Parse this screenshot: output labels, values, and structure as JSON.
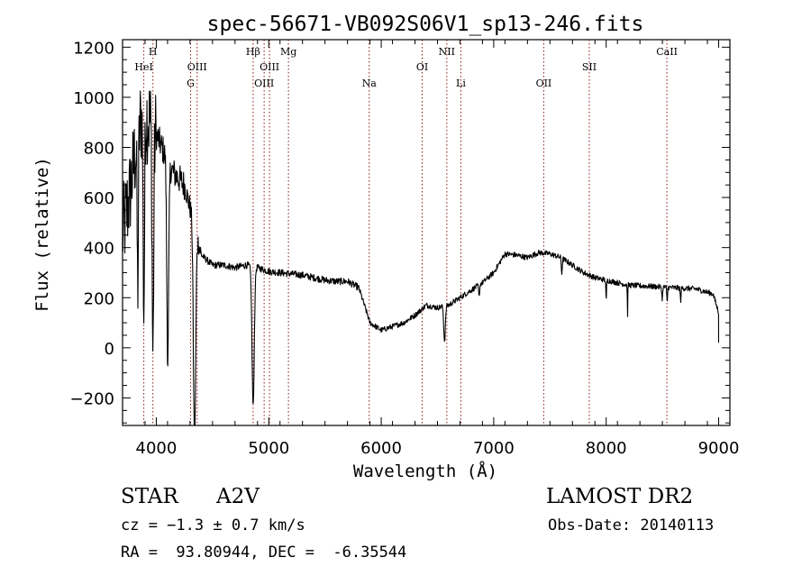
{
  "chart_data": {
    "type": "line",
    "title": "spec-56671-VB092S06V1_sp13-246.fits",
    "xlabel": "Wavelength (Å)",
    "ylabel": "Flux (relative)",
    "xlim": [
      3700,
      9100
    ],
    "ylim": [
      -310,
      1230
    ],
    "xticks": [
      4000,
      5000,
      6000,
      7000,
      8000,
      9000
    ],
    "yticks": [
      -200,
      0,
      200,
      400,
      600,
      800,
      1000,
      1200
    ],
    "xtick_labels": [
      "4000",
      "5000",
      "6000",
      "7000",
      "8000",
      "9000"
    ],
    "ytick_labels": [
      "−200",
      "0",
      "200",
      "400",
      "600",
      "800",
      "1000",
      "1200"
    ],
    "grid": false,
    "line_color": "#000000",
    "marker_color": "#8b1a1a",
    "lines": [
      {
        "label": "H",
        "wavelength": 3970,
        "row": 1
      },
      {
        "label": "HeI",
        "wavelength": 3889,
        "row": 2
      },
      {
        "label": "OIII",
        "wavelength": 4363,
        "row": 2
      },
      {
        "label": "G",
        "wavelength": 4305,
        "row": 3
      },
      {
        "label": "Hβ",
        "wavelength": 4861,
        "row": 1
      },
      {
        "label": "OIII",
        "wavelength": 4959,
        "row": 3
      },
      {
        "label": "OIII",
        "wavelength": 5007,
        "row": 2
      },
      {
        "label": "Mg",
        "wavelength": 5175,
        "row": 1
      },
      {
        "label": "Na",
        "wavelength": 5893,
        "row": 3
      },
      {
        "label": "OI",
        "wavelength": 6364,
        "row": 2
      },
      {
        "label": "NII",
        "wavelength": 6583,
        "row": 1
      },
      {
        "label": "Li",
        "wavelength": 6708,
        "row": 3
      },
      {
        "label": "OII",
        "wavelength": 7445,
        "row": 3
      },
      {
        "label": "SII",
        "wavelength": 7850,
        "row": 2
      },
      {
        "label": "CaII",
        "wavelength": 8540,
        "row": 1
      }
    ],
    "spectrum_anchors": {
      "x": [
        3700,
        3760,
        3820,
        3880,
        3950,
        4050,
        4150,
        4250,
        4300,
        4400,
        4500,
        4600,
        4700,
        4800,
        4900,
        5000,
        5100,
        5200,
        5300,
        5400,
        5500,
        5600,
        5700,
        5800,
        5900,
        6000,
        6100,
        6200,
        6300,
        6400,
        6500,
        6600,
        6700,
        6800,
        6900,
        7000,
        7100,
        7200,
        7300,
        7400,
        7500,
        7600,
        7700,
        7800,
        7900,
        8000,
        8200,
        8400,
        8600,
        8800,
        8950,
        9000
      ],
      "y": [
        450,
        600,
        800,
        950,
        900,
        800,
        700,
        650,
        560,
        370,
        330,
        330,
        320,
        330,
        320,
        305,
        300,
        295,
        290,
        280,
        270,
        265,
        265,
        240,
        100,
        70,
        85,
        100,
        130,
        170,
        160,
        170,
        200,
        230,
        260,
        300,
        375,
        370,
        360,
        380,
        375,
        360,
        330,
        300,
        280,
        270,
        250,
        245,
        240,
        235,
        215,
        140
      ]
    },
    "absorption_dips": [
      {
        "x": 3835,
        "depth": 600,
        "width": 8
      },
      {
        "x": 3889,
        "depth": 800,
        "width": 9
      },
      {
        "x": 3970,
        "depth": 900,
        "width": 10
      },
      {
        "x": 4102,
        "depth": 800,
        "width": 12
      },
      {
        "x": 4340,
        "depth": 900,
        "width": 14
      },
      {
        "x": 4861,
        "depth": 560,
        "width": 14
      },
      {
        "x": 6563,
        "depth": 140,
        "width": 10
      },
      {
        "x": 6870,
        "depth": 50,
        "width": 6
      },
      {
        "x": 7605,
        "depth": 60,
        "width": 6
      },
      {
        "x": 8000,
        "depth": 90,
        "width": 4
      },
      {
        "x": 8190,
        "depth": 120,
        "width": 3
      },
      {
        "x": 8498,
        "depth": 50,
        "width": 5
      },
      {
        "x": 8542,
        "depth": 60,
        "width": 5
      },
      {
        "x": 8662,
        "depth": 50,
        "width": 5
      }
    ]
  },
  "info": {
    "object_type": "STAR",
    "subclass": "A2V",
    "survey": "LAMOST DR2",
    "redshift": "cz = −1.3 ± 0.7 km/s",
    "obs_date": "Obs-Date: 20140113",
    "coords": "RA =  93.80944, DEC =  -6.35544"
  }
}
